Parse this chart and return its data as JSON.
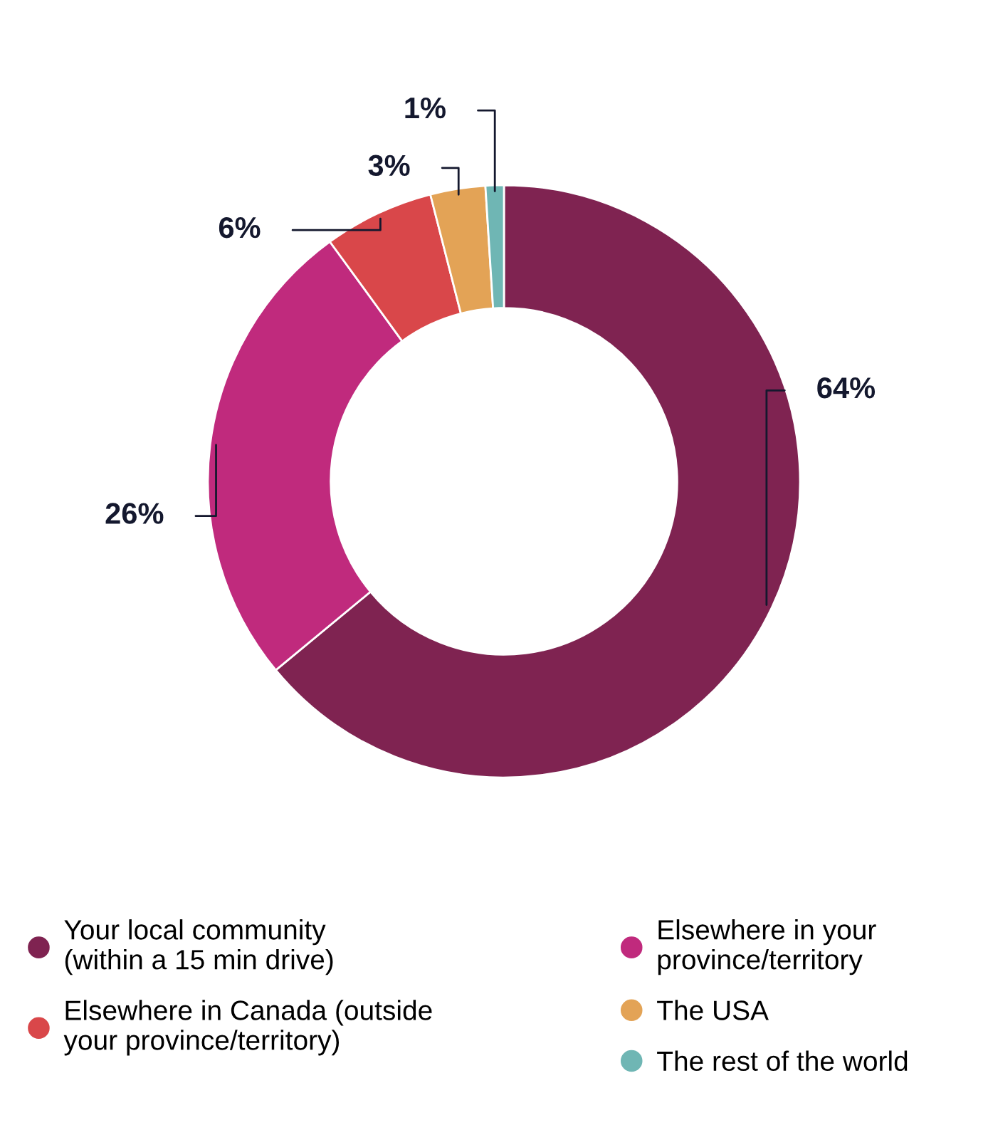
{
  "chart_data": {
    "type": "donut",
    "categories": [
      "Your local community\n(within a 15 min drive)",
      "Elsewhere in your\nprovince/territory",
      "Elsewhere in Canada (outside\nyour province/territory)",
      "The USA",
      "The rest of the world"
    ],
    "values": [
      64,
      26,
      6,
      3,
      1
    ],
    "colors": [
      "#7f2351",
      "#c02a7d",
      "#d9474a",
      "#e3a356",
      "#6fb6b4"
    ],
    "value_labels": [
      "64%",
      "26%",
      "6%",
      "3%",
      "1%"
    ],
    "legend": "bottom"
  }
}
